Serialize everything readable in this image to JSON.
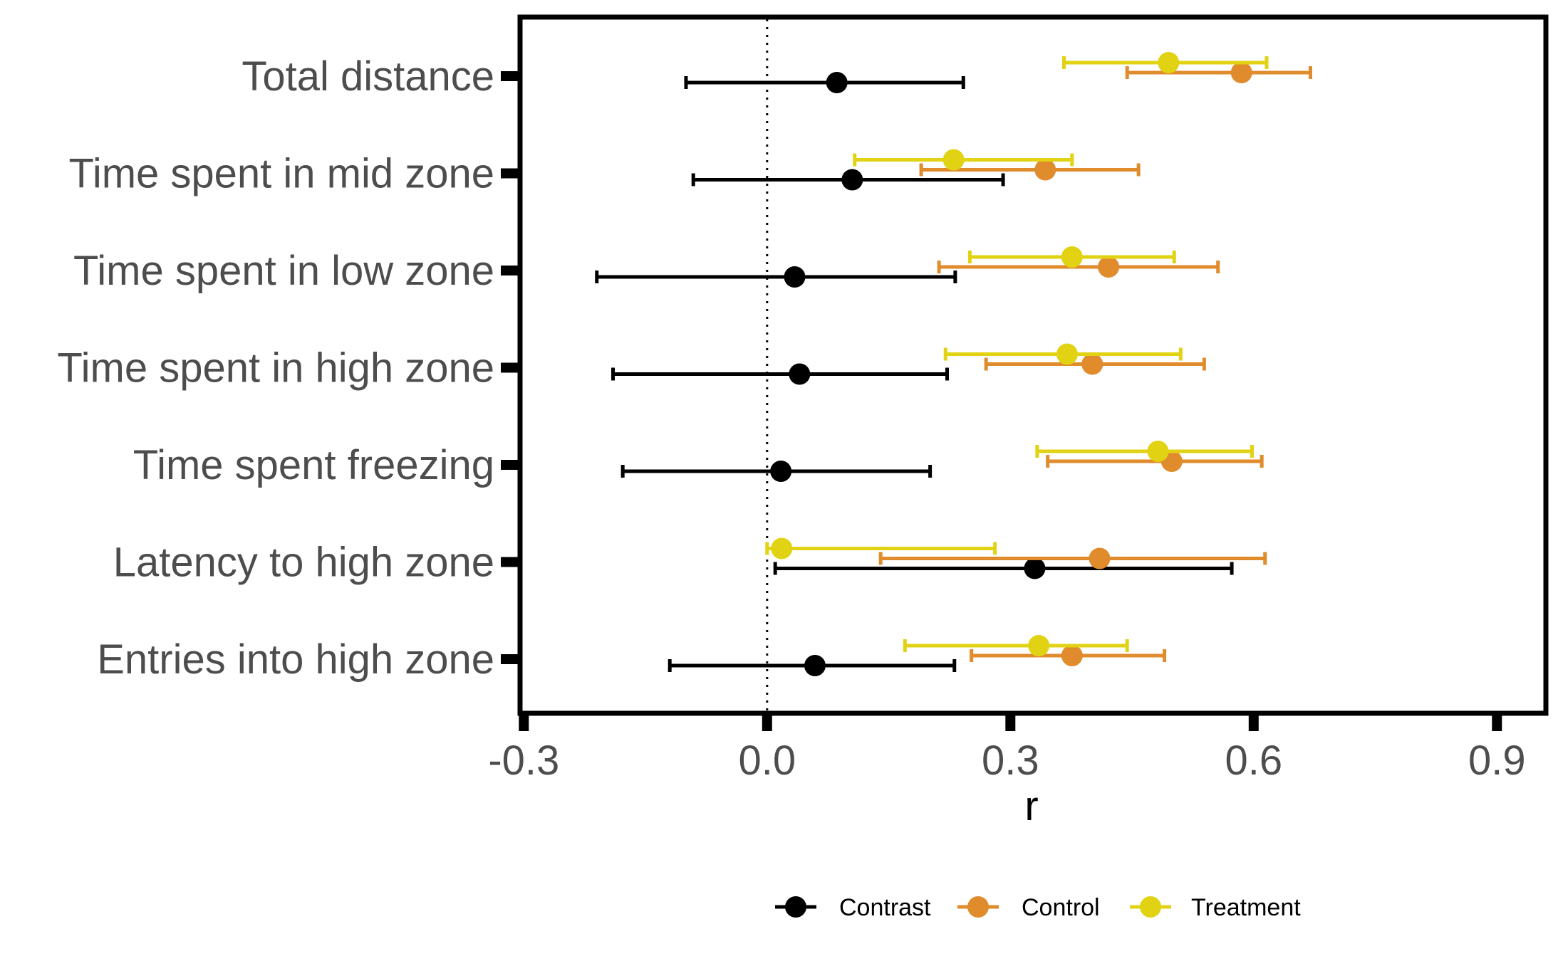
{
  "chart_data": {
    "type": "forest",
    "title": "",
    "xlabel": "r",
    "ylabel": "",
    "xlim": [
      -0.3,
      0.95
    ],
    "xticks": [
      -0.3,
      0.0,
      0.3,
      0.6,
      0.9
    ],
    "xtick_labels": [
      "-0.3",
      "0.0",
      "0.3",
      "0.6",
      "0.9"
    ],
    "reference_line": {
      "x": 0.0,
      "style": "dotted"
    },
    "grid": false,
    "legend_position": "bottom",
    "categories": [
      "Total distance",
      "Time spent in mid zone",
      "Time spent in low zone",
      "Time spent in high zone",
      "Time spent freezing",
      "Latency to high zone",
      "Entries into high zone"
    ],
    "series": [
      {
        "name": "Contrast",
        "color": "#000000",
        "points": [
          {
            "estimate": 0.086,
            "lower": -0.1,
            "upper": 0.242
          },
          {
            "estimate": 0.105,
            "lower": -0.091,
            "upper": 0.291
          },
          {
            "estimate": 0.034,
            "lower": -0.21,
            "upper": 0.232
          },
          {
            "estimate": 0.04,
            "lower": -0.19,
            "upper": 0.222
          },
          {
            "estimate": 0.017,
            "lower": -0.178,
            "upper": 0.201
          },
          {
            "estimate": 0.33,
            "lower": 0.01,
            "upper": 0.573
          },
          {
            "estimate": 0.059,
            "lower": -0.12,
            "upper": 0.231
          }
        ]
      },
      {
        "name": "Control",
        "color": "#e08b2c",
        "points": [
          {
            "estimate": 0.585,
            "lower": 0.444,
            "upper": 0.67
          },
          {
            "estimate": 0.343,
            "lower": 0.19,
            "upper": 0.458
          },
          {
            "estimate": 0.421,
            "lower": 0.212,
            "upper": 0.556
          },
          {
            "estimate": 0.401,
            "lower": 0.27,
            "upper": 0.539
          },
          {
            "estimate": 0.499,
            "lower": 0.346,
            "upper": 0.61
          },
          {
            "estimate": 0.41,
            "lower": 0.14,
            "upper": 0.614
          },
          {
            "estimate": 0.376,
            "lower": 0.252,
            "upper": 0.49
          }
        ]
      },
      {
        "name": "Treatment",
        "color": "#e1d314",
        "points": [
          {
            "estimate": 0.495,
            "lower": 0.366,
            "upper": 0.616
          },
          {
            "estimate": 0.23,
            "lower": 0.108,
            "upper": 0.376
          },
          {
            "estimate": 0.376,
            "lower": 0.25,
            "upper": 0.502
          },
          {
            "estimate": 0.37,
            "lower": 0.22,
            "upper": 0.51
          },
          {
            "estimate": 0.482,
            "lower": 0.333,
            "upper": 0.598
          },
          {
            "estimate": 0.018,
            "lower": 0.0,
            "upper": 0.281
          },
          {
            "estimate": 0.335,
            "lower": 0.17,
            "upper": 0.444
          }
        ]
      }
    ]
  }
}
